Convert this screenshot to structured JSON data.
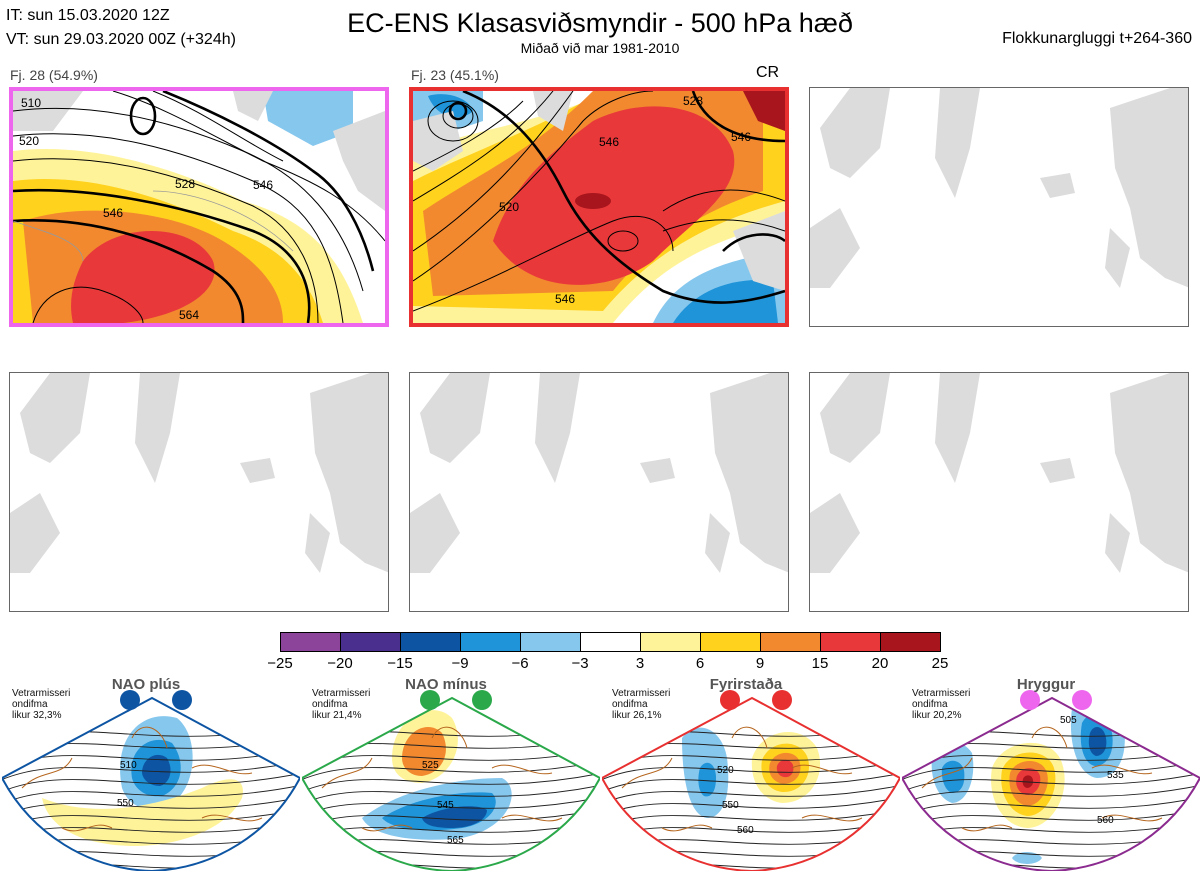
{
  "header": {
    "it": "IT: sun 15.03.2020 12Z",
    "vt": "VT: sun 29.03.2020 00Z  (+324h)",
    "title": "EC-ENS Klasasviðsmyndir - 500 hPa hæð",
    "subtitle": "Miðað við mar 1981-2010",
    "window": "Flokkunargluggi t+264-360"
  },
  "clusters": [
    {
      "label": "Fj. 28 (54.9%)",
      "border_color": "#ee66ee",
      "tag": "",
      "contours": [
        "510",
        "520",
        "528",
        "546",
        "546",
        "564"
      ]
    },
    {
      "label": "Fj. 23 (45.1%)",
      "border_color": "#e83030",
      "tag": "CR",
      "contours": [
        "528",
        "546",
        "546",
        "546",
        "520"
      ]
    }
  ],
  "colorbar": {
    "ticks": [
      "−25",
      "−20",
      "−15",
      "−9",
      "−6",
      "−3",
      "3",
      "6",
      "9",
      "15",
      "20",
      "25"
    ],
    "colors": [
      "#8b4499",
      "#4a2f8f",
      "#0d55a3",
      "#1f94d8",
      "#86c7ee",
      "#ffffff",
      "#fff39a",
      "#ffd21e",
      "#f2892f",
      "#e8383a",
      "#a8151c"
    ]
  },
  "regimes": [
    {
      "name": "NAO plús",
      "stat_lines": [
        "Vetrarmisseri",
        "ondifma",
        "likur 32,3%"
      ],
      "dot_color": "#0d55a3",
      "border_color": "#0d55a3",
      "contours": [
        "510",
        "550"
      ]
    },
    {
      "name": "NAO mínus",
      "stat_lines": [
        "Vetrarmisseri",
        "ondifma",
        "likur 21,4%"
      ],
      "dot_color": "#2aa84a",
      "border_color": "#2aa84a",
      "contours": [
        "525",
        "545",
        "565"
      ]
    },
    {
      "name": "Fyrirstaða",
      "stat_lines": [
        "Vetrarmisseri",
        "ondifma",
        "likur 26,1%"
      ],
      "dot_color": "#e83030",
      "border_color": "#e83030",
      "contours": [
        "520",
        "550",
        "560"
      ]
    },
    {
      "name": "Hryggur",
      "stat_lines": [
        "Vetrarmisseri",
        "ondifma",
        "likur 20,2%"
      ],
      "dot_color": "#ee66ee",
      "border_color": "#8b2a8f",
      "contours": [
        "505",
        "535",
        "560"
      ]
    }
  ]
}
